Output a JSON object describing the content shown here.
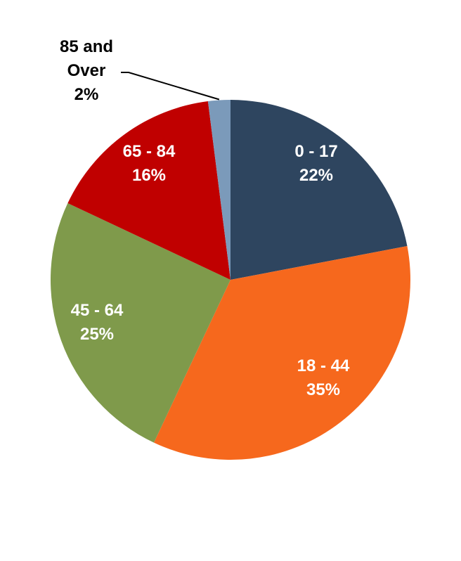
{
  "chart_data": {
    "type": "pie",
    "title": "",
    "legend": "none",
    "slices": [
      {
        "category": "0 - 17",
        "percent_label": "22%",
        "value": 22,
        "color": "#2e455f",
        "label_color": "#ffffff"
      },
      {
        "category": "18 - 44",
        "percent_label": "35%",
        "value": 35,
        "color": "#f6681d",
        "label_color": "#ffffff"
      },
      {
        "category": "45 - 64",
        "percent_label": "25%",
        "value": 25,
        "color": "#7f9a4b",
        "label_color": "#ffffff"
      },
      {
        "category": "65 - 84",
        "percent_label": "16%",
        "value": 16,
        "color": "#c00000",
        "label_color": "#ffffff"
      },
      {
        "category_lines": [
          "85 and",
          "Over"
        ],
        "percent_label": "2%",
        "value": 2,
        "color": "#7b9aba",
        "label_color": "#000000",
        "label_outside": true
      }
    ]
  }
}
